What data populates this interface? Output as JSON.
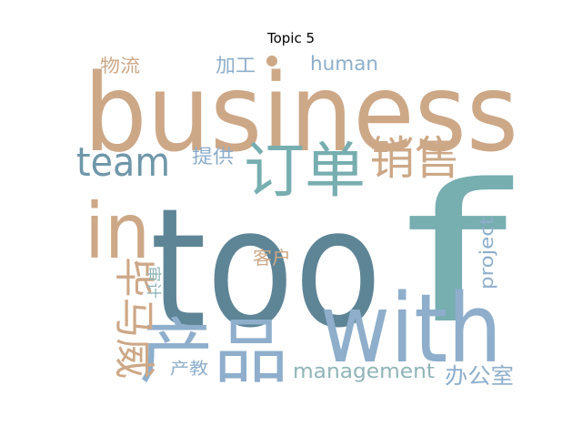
{
  "title": "Topic 5",
  "palette": {
    "tan": "#cda887",
    "slate_blue": "#5e8596",
    "teal": "#77aeb0",
    "light_blue": "#8eaecb",
    "steel": "#6f97a9"
  },
  "words": [
    {
      "text": "too",
      "color": "#5e8596"
    },
    {
      "text": "f",
      "color": "#77aeb0"
    },
    {
      "text": "business",
      "color": "#cda887"
    },
    {
      "text": "with",
      "color": "#8eaecb"
    },
    {
      "text": "in",
      "color": "#cda887"
    },
    {
      "text": "订单",
      "color": "#77aeb0"
    },
    {
      "text": "销售",
      "color": "#cda887"
    },
    {
      "text": "team",
      "color": "#6f97a9"
    },
    {
      "text": "产品",
      "color": "#8eaecb"
    },
    {
      "text": "毕马威",
      "color": "#cda887"
    },
    {
      "text": "management",
      "color": "#8fb4b7"
    },
    {
      "text": "办公室",
      "color": "#8eaecb"
    },
    {
      "text": "project",
      "color": "#8eaecb"
    },
    {
      "text": "human",
      "color": "#8eaecb"
    },
    {
      "text": "物流",
      "color": "#cda887"
    },
    {
      "text": "加工",
      "color": "#8eaecb"
    },
    {
      "text": "提供",
      "color": "#8eaecb"
    },
    {
      "text": "客户",
      "color": "#cda887"
    },
    {
      "text": "审计",
      "color": "#8fb4b7"
    },
    {
      "text": "产教",
      "color": "#8eaecb"
    }
  ]
}
